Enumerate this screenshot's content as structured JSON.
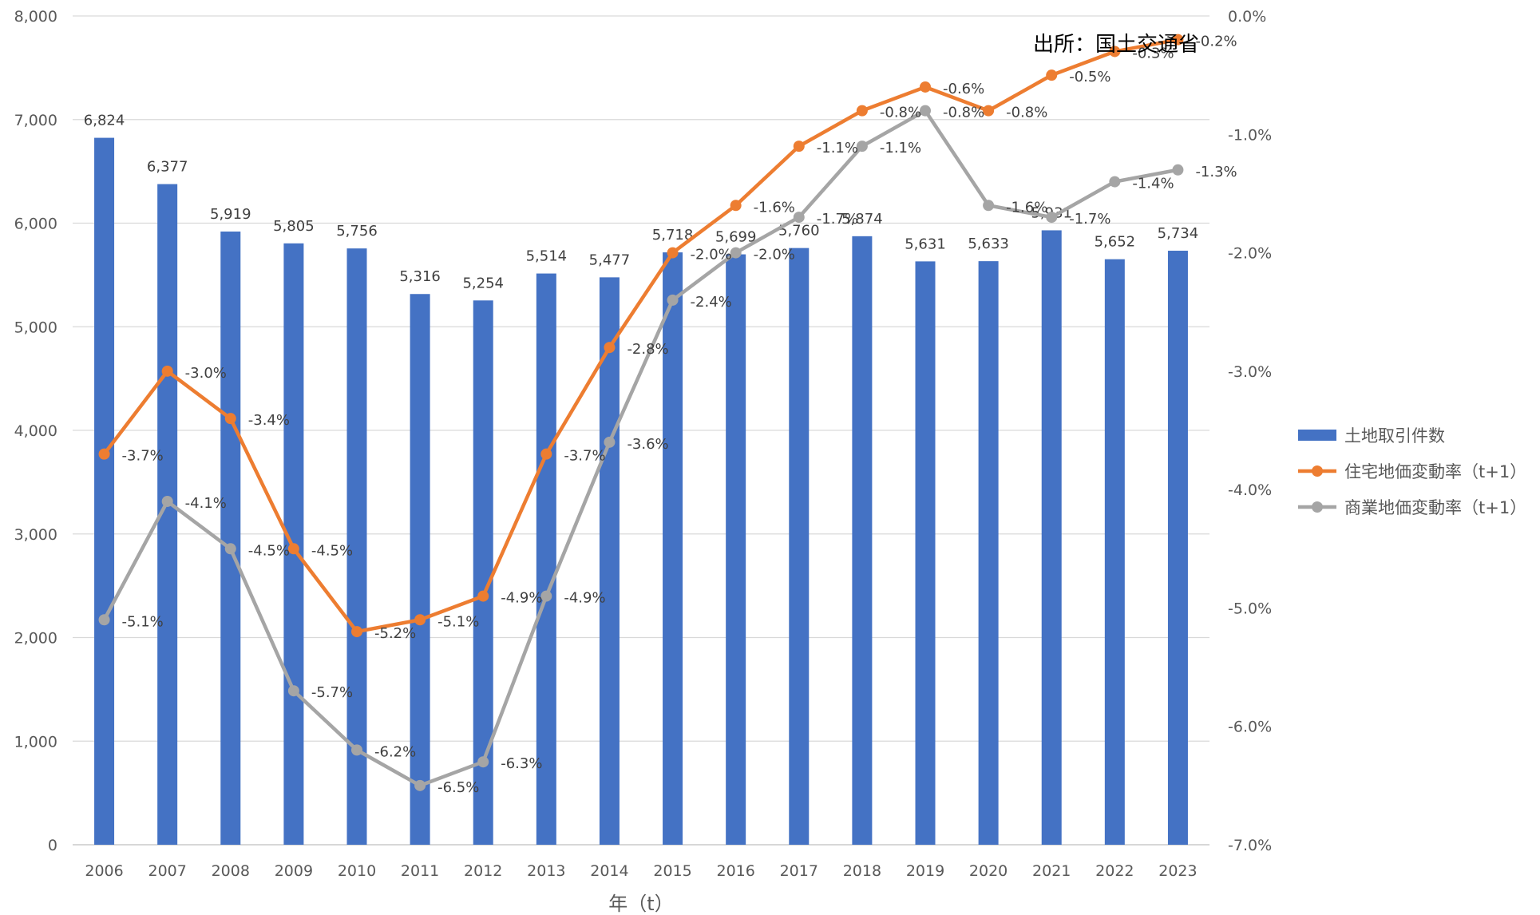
{
  "chart_data": {
    "type": "bar",
    "source_note": "出所：国土交通省",
    "xlabel": "年（t）",
    "categories": [
      "2006",
      "2007",
      "2008",
      "2009",
      "2010",
      "2011",
      "2012",
      "2013",
      "2014",
      "2015",
      "2016",
      "2017",
      "2018",
      "2019",
      "2020",
      "2021",
      "2022",
      "2023"
    ],
    "y_left": {
      "min": 0,
      "max": 8000,
      "step": 1000,
      "tick_labels": [
        "0",
        "1,000",
        "2,000",
        "3,000",
        "4,000",
        "5,000",
        "6,000",
        "7,000",
        "8,000"
      ]
    },
    "y_right": {
      "min": -7.0,
      "max": 0.0,
      "step": 1.0,
      "tick_labels": [
        "-7.0%",
        "-6.0%",
        "-5.0%",
        "-4.0%",
        "-3.0%",
        "-2.0%",
        "-1.0%",
        "0.0%"
      ]
    },
    "grid": "horizontal",
    "legend_position": "right",
    "series": [
      {
        "name": "土地取引件数",
        "type": "bar",
        "axis": "left",
        "color": "#4472C4",
        "values": [
          6824,
          6377,
          5919,
          5805,
          5756,
          5316,
          5254,
          5514,
          5477,
          5718,
          5699,
          5760,
          5874,
          5631,
          5633,
          5931,
          5652,
          5734
        ],
        "labels": [
          "6,824",
          "6,377",
          "5,919",
          "5,805",
          "5,756",
          "5,316",
          "5,254",
          "5,514",
          "5,477",
          "5,718",
          "5,699",
          "5,760",
          "5,874",
          "5,631",
          "5,633",
          "5,931",
          "5,652",
          "5,734"
        ]
      },
      {
        "name": "住宅地価変動率（t+1）",
        "type": "line",
        "axis": "right",
        "color": "#ED7D31",
        "values": [
          -3.7,
          -3.0,
          -3.4,
          -4.5,
          -5.2,
          -5.1,
          -4.9,
          -3.7,
          -2.8,
          -2.0,
          -1.6,
          -1.1,
          -0.8,
          -0.6,
          -0.8,
          -0.5,
          -0.3,
          -0.2
        ],
        "labels": [
          "-3.7%",
          "-3.0%",
          "-3.4%",
          "-4.5%",
          "-5.2%",
          "-5.1%",
          "-4.9%",
          "-3.7%",
          "-2.8%",
          "-2.0%",
          "-1.6%",
          "-1.1%",
          "-0.8%",
          "-0.6%",
          "-0.8%",
          "-0.5%",
          "-0.3%",
          "-0.2%"
        ]
      },
      {
        "name": "商業地価変動率（t+1）",
        "type": "line",
        "axis": "right",
        "color": "#A5A5A5",
        "values": [
          -5.1,
          -4.1,
          -4.5,
          -5.7,
          -6.2,
          -6.5,
          -6.3,
          -4.9,
          -3.6,
          -2.4,
          -2.0,
          -1.7,
          -1.1,
          -0.8,
          -1.6,
          -1.7,
          -1.4,
          -1.3
        ],
        "labels": [
          "-5.1%",
          "-4.1%",
          "-4.5%",
          "-5.7%",
          "-6.2%",
          "-6.5%",
          "-6.3%",
          "-4.9%",
          "-3.6%",
          "-2.4%",
          "-2.0%",
          "-1.7%",
          "-1.1%",
          "-0.8%",
          "-1.6%",
          "-1.7%",
          "-1.4%",
          "-1.3%"
        ]
      }
    ]
  }
}
